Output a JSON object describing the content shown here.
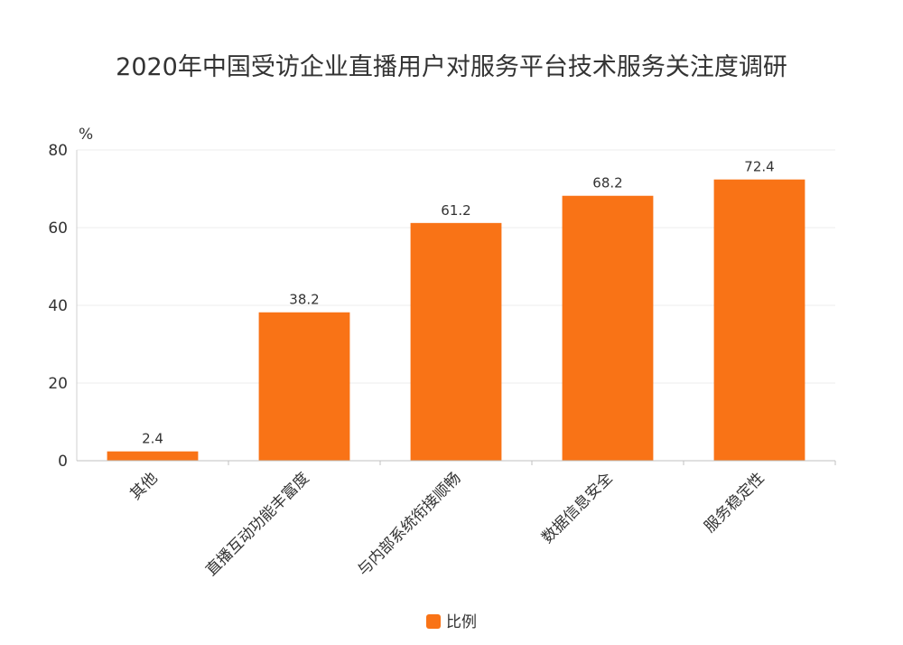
{
  "chart_data": {
    "type": "bar",
    "title": "2020年中国受访企业直播用户对服务平台技术服务关注度调研",
    "unit": "%",
    "categories": [
      "其他",
      "直播互动功能丰富度",
      "与内部系统衔接顺畅",
      "数据信息安全",
      "服务稳定性"
    ],
    "series": [
      {
        "name": "比例",
        "values": [
          2.4,
          38.2,
          61.2,
          68.2,
          72.4
        ],
        "color": "#F97316"
      }
    ],
    "ylim": [
      0,
      80
    ],
    "yticks": [
      0,
      20,
      40,
      60,
      80
    ],
    "grid": true,
    "legend_position": "bottom"
  }
}
